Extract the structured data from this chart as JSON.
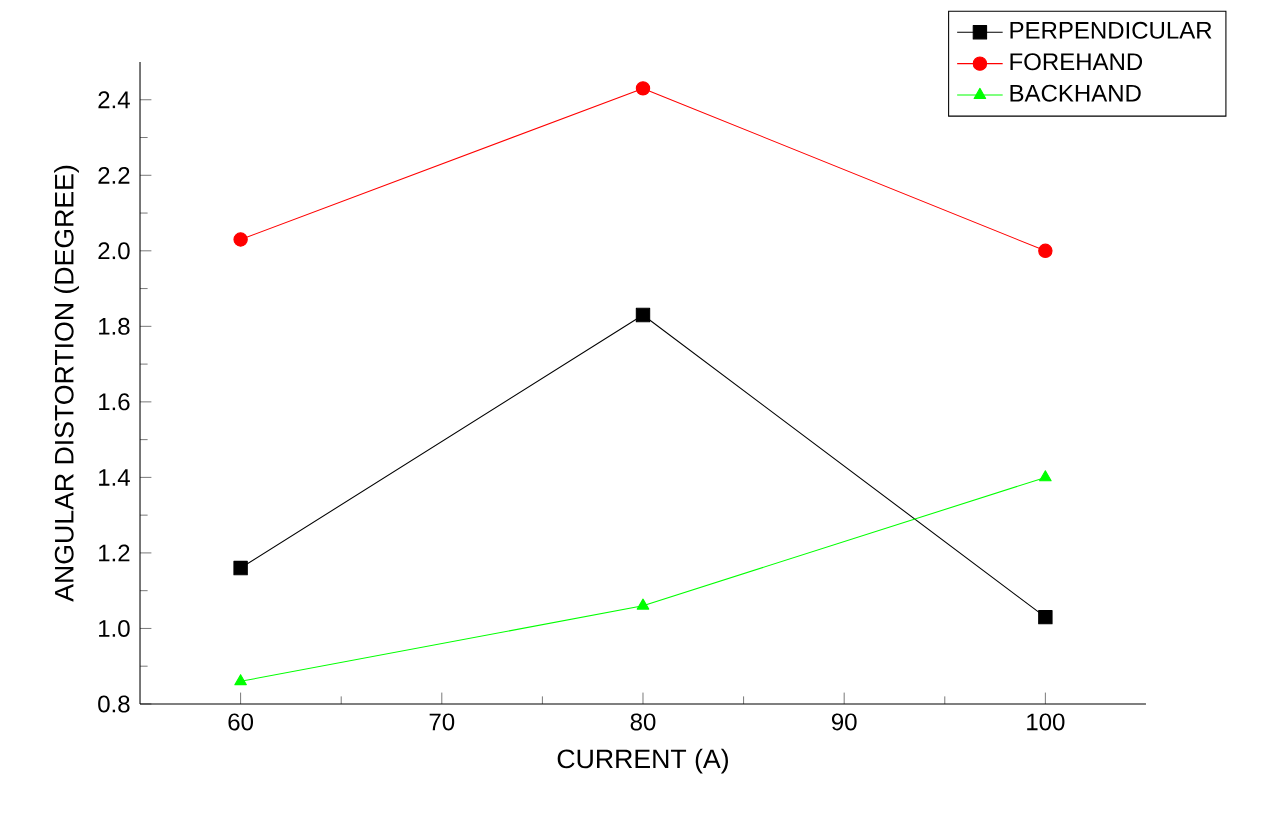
{
  "chart_data": {
    "type": "line",
    "xlabel": "CURRENT (A)",
    "ylabel": "ANGULAR DISTORTION (DEGREE)",
    "x": [
      60,
      80,
      100
    ],
    "series": [
      {
        "name": "PERPENDICULAR",
        "color": "#000000",
        "marker": "square",
        "values": [
          1.16,
          1.83,
          1.03
        ]
      },
      {
        "name": "FOREHAND",
        "color": "#ff0000",
        "marker": "circle",
        "values": [
          2.03,
          2.43,
          2.0
        ]
      },
      {
        "name": "BACKHAND",
        "color": "#00ff00",
        "marker": "triangle",
        "values": [
          0.86,
          1.06,
          1.4
        ]
      }
    ],
    "xlim": [
      55,
      105
    ],
    "ylim": [
      0.8,
      2.5
    ],
    "xticks": [
      60,
      70,
      80,
      90,
      100
    ],
    "yticks": [
      0.8,
      {
        "value": 1.0,
        "label": "1.0"
      },
      1.2,
      1.4,
      1.6,
      1.8,
      {
        "value": 2.0,
        "label": "2.0"
      },
      2.2,
      2.4
    ],
    "legend": "top right",
    "grid": false,
    "line_style": "solid"
  }
}
